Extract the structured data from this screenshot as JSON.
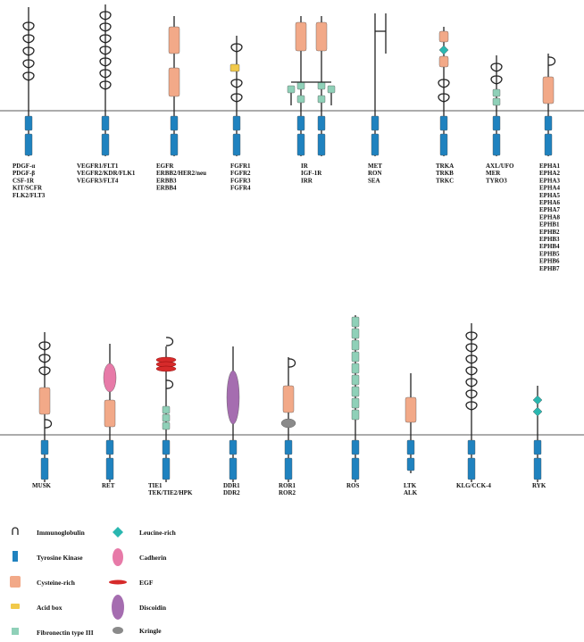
{
  "colors": {
    "tk": "#1f82bf",
    "cys": "#f2a988",
    "acid": "#f1c94a",
    "fn3": "#8fd0b8",
    "leu": "#2ab7b0",
    "cad": "#e77aa8",
    "egf": "#d62a2a",
    "disc": "#a56db0",
    "kringle": "#8a8a8a",
    "line": "#222222"
  },
  "families": [
    {
      "id": "pdgf",
      "labels": [
        "PDGF-α",
        "PDGF-β",
        "CSF-1R",
        "KIT/SCFR",
        "FLK2/FLT3"
      ]
    },
    {
      "id": "vegf",
      "labels": [
        "VEGFR1/FLT1",
        "VEGFR2/KDR/FLK1",
        "VEGFR3/FLT4"
      ]
    },
    {
      "id": "egfr",
      "labels": [
        "EGFR",
        "ERBB2/HER2/neu",
        "ERBB3",
        "ERBB4"
      ]
    },
    {
      "id": "fgfr",
      "labels": [
        "FGFR1",
        "FGFR2",
        "FGFR3",
        "FGFR4"
      ]
    },
    {
      "id": "ir",
      "labels": [
        "IR",
        "IGF-1R",
        "IRR"
      ]
    },
    {
      "id": "met",
      "labels": [
        "MET",
        "RON",
        "SEA"
      ]
    },
    {
      "id": "trk",
      "labels": [
        "TRKA",
        "TRKB",
        "TRKC"
      ]
    },
    {
      "id": "axl",
      "labels": [
        "AXL/UFO",
        "MER",
        "TYRO3"
      ]
    },
    {
      "id": "eph",
      "labels": [
        "EPHA1",
        "EPHA2",
        "EPHA3",
        "EPHA4",
        "EPHA5",
        "EPHA6",
        "EPHA7",
        "EPHA8",
        "EPHB1",
        "EPHB2",
        "EPHB3",
        "EPHB4",
        "EPHB5",
        "EPHB6",
        "EPHB7"
      ]
    },
    {
      "id": "musk",
      "labels": [
        "MUSK"
      ]
    },
    {
      "id": "ret",
      "labels": [
        "RET"
      ]
    },
    {
      "id": "tie",
      "labels": [
        "TIE1",
        "TEK/TIE2/HPK"
      ]
    },
    {
      "id": "ddr",
      "labels": [
        "DDR1",
        "DDR2"
      ]
    },
    {
      "id": "ror",
      "labels": [
        "ROR1",
        "ROR2"
      ]
    },
    {
      "id": "ros",
      "labels": [
        "ROS"
      ]
    },
    {
      "id": "ltk",
      "labels": [
        "LTK",
        "ALK"
      ]
    },
    {
      "id": "klg",
      "labels": [
        "KLG/CCK-4"
      ]
    },
    {
      "id": "ryk",
      "labels": [
        "RYK"
      ]
    }
  ],
  "legend": [
    {
      "id": "ig",
      "label": "Immunoglobulin"
    },
    {
      "id": "tk",
      "label": "Tyrosine Kinase"
    },
    {
      "id": "cys",
      "label": "Cysteine-rich"
    },
    {
      "id": "acid",
      "label": "Acid box"
    },
    {
      "id": "fn3",
      "label": "Fibronectin type III"
    },
    {
      "id": "leu",
      "label": "Leucine-rich"
    },
    {
      "id": "cad",
      "label": "Cadherin"
    },
    {
      "id": "egf",
      "label": "EGF"
    },
    {
      "id": "disc",
      "label": "Discoidin"
    },
    {
      "id": "kringle",
      "label": "Kringle"
    }
  ]
}
